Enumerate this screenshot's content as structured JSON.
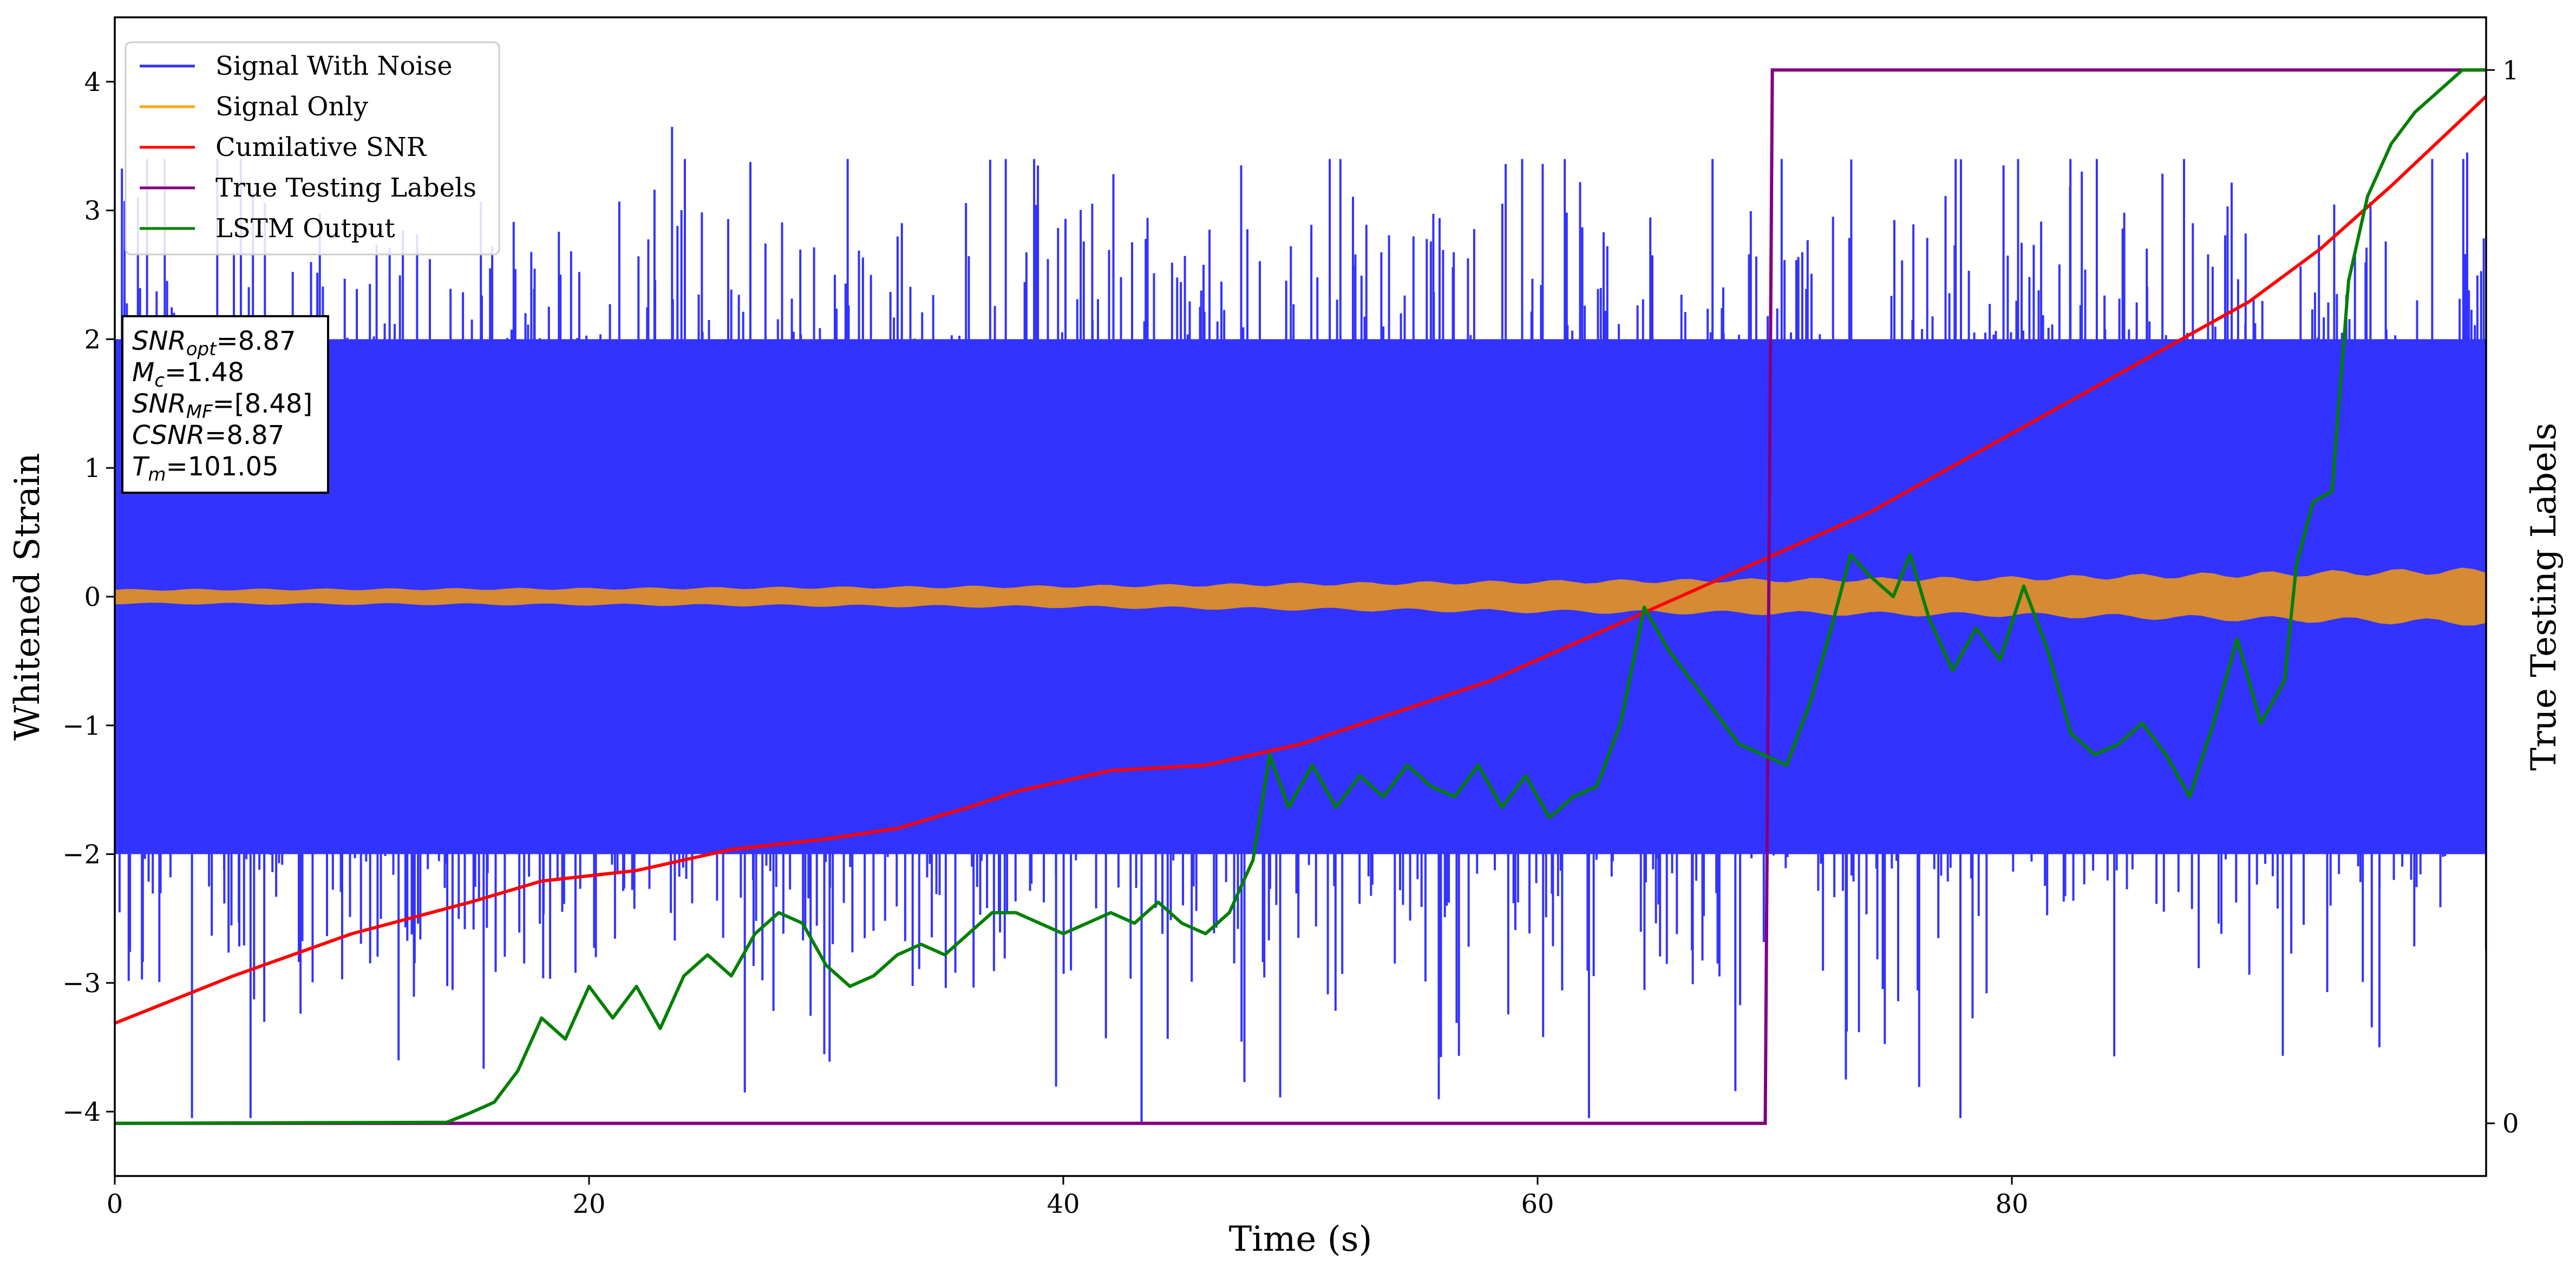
{
  "chart_data": {
    "type": "line",
    "xlabel": "Time (s)",
    "ylabel": "Whitened Strain",
    "y2label": "True Testing Labels",
    "xlim": [
      0,
      100
    ],
    "ylim": [
      -4.5,
      4.5
    ],
    "y2lim": [
      -0.05,
      1.05
    ],
    "x_ticks": [
      0,
      20,
      40,
      60,
      80
    ],
    "y_ticks": [
      -4,
      -3,
      -2,
      -1,
      0,
      1,
      2,
      3,
      4
    ],
    "y2_ticks": [
      0,
      1
    ],
    "x_tick_labels": [
      "0",
      "20",
      "40",
      "60",
      "80"
    ],
    "y_tick_labels": [
      "−4",
      "−3",
      "−2",
      "−1",
      "0",
      "1",
      "2",
      "3",
      "4"
    ],
    "y2_tick_labels": [
      "0",
      "1"
    ],
    "legend_position": "upper-left",
    "colors": {
      "noise": "#3333ff",
      "signal": "#d58a33",
      "snr": "#ff0000",
      "labels": "#800080",
      "lstm": "#008000"
    },
    "series": [
      {
        "name": "Signal With Noise",
        "axis": "left",
        "style": "dense noise band",
        "envelope": {
          "lower": -2.0,
          "upper": 2.0,
          "sigma": 0.95
        },
        "notable_spikes": [
          [
            23.5,
            3.65
          ],
          [
            43.3,
            -4.1
          ],
          [
            47.5,
            3.35
          ],
          [
            73,
            -3.75
          ],
          [
            95.5,
            -3.5
          ],
          [
            99.2,
            3.45
          ]
        ]
      },
      {
        "name": "Signal Only",
        "axis": "left",
        "style": "chirp band",
        "amplitude": [
          [
            0,
            0.06
          ],
          [
            20,
            0.07
          ],
          [
            40,
            0.09
          ],
          [
            60,
            0.13
          ],
          [
            80,
            0.16
          ],
          [
            100,
            0.23
          ]
        ]
      },
      {
        "name": "Cumilative SNR",
        "axis": "right",
        "points": [
          [
            0,
            0.095
          ],
          [
            5,
            0.14
          ],
          [
            10,
            0.18
          ],
          [
            15,
            0.21
          ],
          [
            18,
            0.23
          ],
          [
            22,
            0.24
          ],
          [
            26,
            0.26
          ],
          [
            30,
            0.27
          ],
          [
            33,
            0.28
          ],
          [
            36,
            0.3
          ],
          [
            38,
            0.315
          ],
          [
            42,
            0.335
          ],
          [
            46,
            0.34
          ],
          [
            50,
            0.36
          ],
          [
            54,
            0.39
          ],
          [
            58,
            0.42
          ],
          [
            62,
            0.46
          ],
          [
            66,
            0.5
          ],
          [
            70,
            0.54
          ],
          [
            74,
            0.58
          ],
          [
            78,
            0.63
          ],
          [
            82,
            0.68
          ],
          [
            86,
            0.73
          ],
          [
            90,
            0.78
          ],
          [
            93,
            0.83
          ],
          [
            96,
            0.89
          ],
          [
            100,
            0.975
          ]
        ]
      },
      {
        "name": "True Testing Labels",
        "axis": "right",
        "points": [
          [
            0,
            0
          ],
          [
            69.6,
            0
          ],
          [
            69.9,
            1
          ],
          [
            100,
            1
          ]
        ]
      },
      {
        "name": "LSTM Output",
        "axis": "right",
        "points": [
          [
            0,
            0
          ],
          [
            14,
            0.001
          ],
          [
            15,
            0.01
          ],
          [
            16,
            0.02
          ],
          [
            17,
            0.05
          ],
          [
            18,
            0.1
          ],
          [
            19,
            0.08
          ],
          [
            20,
            0.13
          ],
          [
            21,
            0.1
          ],
          [
            22,
            0.13
          ],
          [
            23,
            0.09
          ],
          [
            24,
            0.14
          ],
          [
            25,
            0.16
          ],
          [
            26,
            0.14
          ],
          [
            27,
            0.18
          ],
          [
            28,
            0.2
          ],
          [
            29,
            0.19
          ],
          [
            30,
            0.15
          ],
          [
            31,
            0.13
          ],
          [
            32,
            0.14
          ],
          [
            33,
            0.16
          ],
          [
            34,
            0.17
          ],
          [
            35,
            0.16
          ],
          [
            36,
            0.18
          ],
          [
            37,
            0.2
          ],
          [
            38,
            0.2
          ],
          [
            39,
            0.19
          ],
          [
            40,
            0.18
          ],
          [
            41,
            0.19
          ],
          [
            42,
            0.2
          ],
          [
            43,
            0.19
          ],
          [
            44,
            0.21
          ],
          [
            45,
            0.19
          ],
          [
            46,
            0.18
          ],
          [
            47,
            0.2
          ],
          [
            48,
            0.25
          ],
          [
            48.7,
            0.35
          ],
          [
            49.5,
            0.3
          ],
          [
            50.5,
            0.34
          ],
          [
            51.5,
            0.3
          ],
          [
            52.5,
            0.33
          ],
          [
            53.5,
            0.31
          ],
          [
            54.5,
            0.34
          ],
          [
            55.5,
            0.32
          ],
          [
            56.5,
            0.31
          ],
          [
            57.5,
            0.34
          ],
          [
            58.5,
            0.3
          ],
          [
            59.5,
            0.33
          ],
          [
            60.5,
            0.29
          ],
          [
            61.5,
            0.31
          ],
          [
            62.5,
            0.32
          ],
          [
            63.5,
            0.38
          ],
          [
            64.5,
            0.49
          ],
          [
            65.5,
            0.45
          ],
          [
            66.5,
            0.42
          ],
          [
            67.5,
            0.39
          ],
          [
            68.5,
            0.36
          ],
          [
            69.5,
            0.35
          ],
          [
            70.5,
            0.34
          ],
          [
            71.5,
            0.4
          ],
          [
            72.5,
            0.48
          ],
          [
            73.2,
            0.54
          ],
          [
            74,
            0.52
          ],
          [
            75,
            0.5
          ],
          [
            75.7,
            0.54
          ],
          [
            76.5,
            0.48
          ],
          [
            77.5,
            0.43
          ],
          [
            78.5,
            0.47
          ],
          [
            79.5,
            0.44
          ],
          [
            80.5,
            0.51
          ],
          [
            81.5,
            0.45
          ],
          [
            82.5,
            0.37
          ],
          [
            83.5,
            0.35
          ],
          [
            84.5,
            0.36
          ],
          [
            85.5,
            0.38
          ],
          [
            86.5,
            0.35
          ],
          [
            87.5,
            0.31
          ],
          [
            88.5,
            0.38
          ],
          [
            89.5,
            0.46
          ],
          [
            90.5,
            0.38
          ],
          [
            91.5,
            0.42
          ],
          [
            92,
            0.53
          ],
          [
            92.7,
            0.59
          ],
          [
            93.5,
            0.6
          ],
          [
            94.2,
            0.8
          ],
          [
            95,
            0.88
          ],
          [
            96,
            0.93
          ],
          [
            97,
            0.96
          ],
          [
            98,
            0.98
          ],
          [
            99,
            1.0
          ],
          [
            100,
            1.0
          ]
        ]
      }
    ],
    "annotation_lines": [
      {
        "italic": "SNR",
        "sub": "opt",
        "rest": "=8.87"
      },
      {
        "italic": "M",
        "sub": "c",
        "rest": "=1.48"
      },
      {
        "italic": "SNR",
        "sub": "MF",
        "rest": "=[8.48]"
      },
      {
        "italic": "CSNR",
        "sub": "",
        "rest": "=8.87"
      },
      {
        "italic": "T",
        "sub": "m",
        "rest": "=101.05"
      }
    ]
  }
}
